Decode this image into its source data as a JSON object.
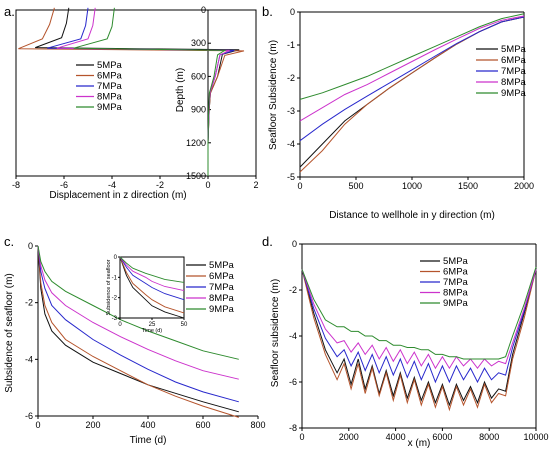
{
  "colors": {
    "5MPa": "#111111",
    "6MPa": "#b5542c",
    "7MPa": "#2828cc",
    "8MPa": "#cc33cc",
    "9MPa": "#2e8b2e"
  },
  "chart_data": [
    {
      "id": "a",
      "panel_label": "a.",
      "type": "line",
      "xlabel": "Displacement in z direction (m)",
      "ylabel": "Depth (m)",
      "xlim": [
        -8,
        2
      ],
      "ylim": [
        0,
        1500
      ],
      "y_inverted": true,
      "xticks": [
        -8,
        -6,
        -4,
        -2,
        0,
        2
      ],
      "yticks": [
        0,
        300,
        600,
        900,
        1200,
        1500
      ],
      "legend": [
        "5MPa",
        "6MPa",
        "7MPa",
        "8MPa",
        "9MPa"
      ],
      "series": [
        {
          "name": "5MPa",
          "points": [
            [
              -5.8,
              -20
            ],
            [
              -5.9,
              120
            ],
            [
              -6.1,
              250
            ],
            [
              -7.2,
              340
            ],
            [
              1.3,
              360
            ],
            [
              0.6,
              400
            ],
            [
              0.4,
              600
            ],
            [
              0.1,
              750
            ],
            [
              0.05,
              900
            ],
            [
              0,
              1200
            ],
            [
              0,
              1500
            ]
          ]
        },
        {
          "name": "6MPa",
          "points": [
            [
              -6.4,
              -20
            ],
            [
              -6.6,
              130
            ],
            [
              -6.9,
              260
            ],
            [
              -7.9,
              350
            ],
            [
              1.5,
              370
            ],
            [
              0.7,
              410
            ],
            [
              0.4,
              600
            ],
            [
              0.1,
              750
            ],
            [
              0.05,
              900
            ],
            [
              0,
              1200
            ],
            [
              0,
              1500
            ]
          ]
        },
        {
          "name": "7MPa",
          "points": [
            [
              -5.0,
              -20
            ],
            [
              -5.1,
              140
            ],
            [
              -5.3,
              260
            ],
            [
              -6.7,
              345
            ],
            [
              1.1,
              365
            ],
            [
              0.5,
              405
            ],
            [
              0.3,
              600
            ],
            [
              0.08,
              750
            ],
            [
              0.04,
              900
            ],
            [
              0,
              1200
            ],
            [
              0,
              1500
            ]
          ]
        },
        {
          "name": "8MPa",
          "points": [
            [
              -4.7,
              -20
            ],
            [
              -4.8,
              140
            ],
            [
              -5.0,
              260
            ],
            [
              -6.3,
              345
            ],
            [
              0.9,
              365
            ],
            [
              0.5,
              405
            ],
            [
              0.3,
              600
            ],
            [
              0.08,
              750
            ],
            [
              0.04,
              900
            ],
            [
              0,
              1200
            ],
            [
              0,
              1500
            ]
          ]
        },
        {
          "name": "9MPa",
          "points": [
            [
              -3.9,
              -20
            ],
            [
              -4.0,
              150
            ],
            [
              -4.2,
              260
            ],
            [
              -5.6,
              345
            ],
            [
              0.7,
              365
            ],
            [
              0.4,
              405
            ],
            [
              0.25,
              600
            ],
            [
              0.06,
              750
            ],
            [
              0.03,
              900
            ],
            [
              0,
              1200
            ],
            [
              0,
              1500
            ]
          ]
        }
      ]
    },
    {
      "id": "b",
      "panel_label": "b.",
      "type": "line",
      "xlabel": "Distance to wellhole in y direction (m)",
      "ylabel": "Seafloor Subsidence (m)",
      "xlim": [
        0,
        2000
      ],
      "ylim": [
        -5,
        0
      ],
      "xticks": [
        0,
        500,
        1000,
        1500,
        2000
      ],
      "yticks": [
        0,
        -1,
        -2,
        -3,
        -4,
        -5
      ],
      "legend": [
        "5MPa",
        "6MPa",
        "7MPa",
        "8MPa",
        "9MPa"
      ],
      "series": [
        {
          "name": "5MPa",
          "x": [
            0,
            200,
            400,
            600,
            800,
            1000,
            1200,
            1400,
            1600,
            1800,
            2000
          ],
          "y": [
            -4.7,
            -4.0,
            -3.3,
            -2.8,
            -2.3,
            -1.85,
            -1.4,
            -0.97,
            -0.6,
            -0.3,
            -0.15
          ]
        },
        {
          "name": "6MPa",
          "x": [
            0,
            200,
            400,
            600,
            800,
            1000,
            1200,
            1400,
            1600,
            1800,
            2000
          ],
          "y": [
            -4.85,
            -4.2,
            -3.4,
            -2.8,
            -2.3,
            -1.85,
            -1.4,
            -0.97,
            -0.6,
            -0.3,
            -0.15
          ]
        },
        {
          "name": "7MPa",
          "x": [
            0,
            200,
            400,
            600,
            800,
            1000,
            1200,
            1400,
            1600,
            1800,
            2000
          ],
          "y": [
            -3.9,
            -3.4,
            -2.95,
            -2.55,
            -2.15,
            -1.75,
            -1.35,
            -0.95,
            -0.6,
            -0.3,
            -0.15
          ]
        },
        {
          "name": "8MPa",
          "x": [
            0,
            200,
            400,
            600,
            800,
            1000,
            1200,
            1400,
            1600,
            1800,
            2000
          ],
          "y": [
            -3.3,
            -2.9,
            -2.5,
            -2.2,
            -1.85,
            -1.5,
            -1.15,
            -0.82,
            -0.5,
            -0.25,
            -0.12
          ]
        },
        {
          "name": "9MPa",
          "x": [
            0,
            200,
            400,
            600,
            800,
            1000,
            1200,
            1400,
            1600,
            1800,
            2000
          ],
          "y": [
            -2.65,
            -2.45,
            -2.2,
            -1.95,
            -1.65,
            -1.35,
            -1.05,
            -0.75,
            -0.45,
            -0.2,
            -0.05
          ]
        }
      ]
    },
    {
      "id": "c",
      "panel_label": "c.",
      "type": "line",
      "xlabel": "Time (d)",
      "ylabel": "Subsidence of seafloor (m)",
      "xlim": [
        0,
        800
      ],
      "ylim": [
        -6,
        0
      ],
      "xticks": [
        0,
        200,
        400,
        600,
        800
      ],
      "yticks": [
        0,
        -2,
        -4,
        -6
      ],
      "legend": [
        "5MPa",
        "6MPa",
        "7MPa",
        "8MPa",
        "9MPa"
      ],
      "series": [
        {
          "name": "5MPa",
          "x": [
            0,
            10,
            25,
            50,
            100,
            200,
            300,
            400,
            500,
            600,
            730
          ],
          "y": [
            0,
            -1.5,
            -2.4,
            -3.0,
            -3.5,
            -4.1,
            -4.5,
            -4.9,
            -5.2,
            -5.5,
            -5.85
          ]
        },
        {
          "name": "6MPa",
          "x": [
            0,
            10,
            25,
            50,
            100,
            200,
            300,
            400,
            500,
            600,
            730
          ],
          "y": [
            0,
            -1.3,
            -2.1,
            -2.7,
            -3.3,
            -3.9,
            -4.4,
            -4.9,
            -5.3,
            -5.65,
            -6.05
          ]
        },
        {
          "name": "7MPa",
          "x": [
            0,
            10,
            25,
            50,
            100,
            200,
            300,
            400,
            500,
            600,
            730
          ],
          "y": [
            0,
            -0.9,
            -1.5,
            -2.1,
            -2.6,
            -3.3,
            -3.85,
            -4.35,
            -4.8,
            -5.15,
            -5.5
          ]
        },
        {
          "name": "8MPa",
          "x": [
            0,
            10,
            25,
            50,
            100,
            200,
            300,
            400,
            500,
            600,
            730
          ],
          "y": [
            0,
            -0.7,
            -1.2,
            -1.65,
            -2.1,
            -2.7,
            -3.2,
            -3.65,
            -4.05,
            -4.4,
            -4.7
          ]
        },
        {
          "name": "9MPa",
          "x": [
            0,
            10,
            25,
            50,
            100,
            200,
            300,
            400,
            500,
            600,
            730
          ],
          "y": [
            0,
            -0.55,
            -0.9,
            -1.25,
            -1.6,
            -2.1,
            -2.6,
            -3.0,
            -3.35,
            -3.7,
            -4.0
          ]
        }
      ],
      "inset": {
        "xlabel": "Time (d)",
        "ylabel": "Subsidence of seafloor",
        "xlim": [
          0,
          50
        ],
        "ylim": [
          -3,
          0
        ],
        "xticks": [
          0,
          25,
          50
        ],
        "yticks": [
          0,
          -1,
          -2,
          -3
        ],
        "series": [
          {
            "name": "5MPa",
            "x": [
              0,
              5,
              10,
              20,
              25,
              35,
              50
            ],
            "y": [
              0,
              -0.9,
              -1.5,
              -2.1,
              -2.4,
              -2.7,
              -3.0
            ]
          },
          {
            "name": "6MPa",
            "x": [
              0,
              5,
              10,
              20,
              25,
              35,
              50
            ],
            "y": [
              0,
              -0.75,
              -1.3,
              -1.85,
              -2.1,
              -2.45,
              -2.75
            ]
          },
          {
            "name": "7MPa",
            "x": [
              0,
              5,
              10,
              20,
              25,
              35,
              50
            ],
            "y": [
              0,
              -0.5,
              -0.9,
              -1.3,
              -1.5,
              -1.8,
              -2.1
            ]
          },
          {
            "name": "8MPa",
            "x": [
              0,
              5,
              10,
              20,
              25,
              35,
              50
            ],
            "y": [
              0,
              -0.4,
              -0.7,
              -1.0,
              -1.2,
              -1.45,
              -1.65
            ]
          },
          {
            "name": "9MPa",
            "x": [
              0,
              5,
              10,
              20,
              25,
              35,
              50
            ],
            "y": [
              0,
              -0.3,
              -0.55,
              -0.8,
              -0.9,
              -1.1,
              -1.25
            ]
          }
        ]
      }
    },
    {
      "id": "d",
      "panel_label": "d.",
      "type": "line",
      "xlabel": "x (m)",
      "ylabel": "Seafloor subsidence (m)",
      "xlim": [
        0,
        10000
      ],
      "ylim": [
        -8,
        0
      ],
      "xticks": [
        0,
        2000,
        4000,
        6000,
        8000,
        10000
      ],
      "yticks": [
        0,
        -2,
        -4,
        -6,
        -8
      ],
      "legend": [
        "5MPa",
        "6MPa",
        "7MPa",
        "8MPa",
        "9MPa"
      ],
      "series": [
        {
          "name": "5MPa",
          "x": [
            0,
            500,
            1000,
            1500,
            1800,
            2100,
            2400,
            2700,
            3000,
            3300,
            3600,
            3900,
            4200,
            4500,
            4800,
            5100,
            5400,
            5700,
            6000,
            6300,
            6600,
            6900,
            7200,
            7500,
            7800,
            8100,
            8400,
            8700,
            9000,
            9500,
            10000
          ],
          "y": [
            -1.1,
            -3.0,
            -4.6,
            -5.6,
            -5.0,
            -6.1,
            -5.0,
            -6.3,
            -5.3,
            -6.5,
            -5.5,
            -6.6,
            -5.6,
            -6.7,
            -5.8,
            -6.8,
            -6.0,
            -6.9,
            -6.1,
            -7.0,
            -6.1,
            -6.8,
            -6.2,
            -6.9,
            -6.0,
            -6.7,
            -6.3,
            -6.4,
            -4.8,
            -3.0,
            -1.1
          ]
        },
        {
          "name": "6MPa",
          "x": [
            0,
            500,
            1000,
            1500,
            1800,
            2100,
            2400,
            2700,
            3000,
            3300,
            3600,
            3900,
            4200,
            4500,
            4800,
            5100,
            5400,
            5700,
            6000,
            6300,
            6600,
            6900,
            7200,
            7500,
            7800,
            8100,
            8400,
            8700,
            9000,
            9500,
            10000
          ],
          "y": [
            -1.1,
            -3.2,
            -4.8,
            -5.9,
            -5.2,
            -6.3,
            -5.2,
            -6.5,
            -5.4,
            -6.6,
            -5.6,
            -6.8,
            -5.7,
            -6.9,
            -5.9,
            -7.0,
            -6.1,
            -7.1,
            -6.2,
            -7.2,
            -6.2,
            -7.0,
            -6.3,
            -7.1,
            -6.1,
            -6.9,
            -6.5,
            -6.6,
            -5.0,
            -3.2,
            -1.1
          ]
        },
        {
          "name": "7MPa",
          "x": [
            0,
            500,
            1000,
            1500,
            1800,
            2100,
            2400,
            2700,
            3000,
            3300,
            3600,
            3900,
            4200,
            4500,
            4800,
            5100,
            5400,
            5700,
            6000,
            6300,
            6600,
            6900,
            7200,
            7500,
            7800,
            8100,
            8400,
            8700,
            9000,
            9500,
            10000
          ],
          "y": [
            -1.1,
            -2.8,
            -4.1,
            -4.9,
            -4.6,
            -5.3,
            -4.7,
            -5.5,
            -4.8,
            -5.6,
            -4.9,
            -5.7,
            -5.0,
            -5.8,
            -5.1,
            -5.9,
            -5.2,
            -6.0,
            -5.3,
            -6.0,
            -5.3,
            -5.9,
            -5.4,
            -6.0,
            -5.4,
            -5.9,
            -5.6,
            -5.7,
            -4.5,
            -2.9,
            -1.1
          ]
        },
        {
          "name": "8MPa",
          "x": [
            0,
            500,
            1000,
            1500,
            1800,
            2100,
            2400,
            2700,
            3000,
            3300,
            3600,
            3900,
            4200,
            4500,
            4800,
            5100,
            5400,
            5700,
            6000,
            6300,
            6600,
            6900,
            7200,
            7500,
            7800,
            8100,
            8400,
            8700,
            9000,
            9500,
            10000
          ],
          "y": [
            -1.1,
            -2.6,
            -3.7,
            -4.3,
            -4.2,
            -4.7,
            -4.3,
            -4.8,
            -4.4,
            -5.0,
            -4.5,
            -5.1,
            -4.6,
            -5.2,
            -4.7,
            -5.3,
            -4.8,
            -5.4,
            -4.9,
            -5.4,
            -4.9,
            -5.3,
            -5.0,
            -5.4,
            -5.0,
            -5.3,
            -5.1,
            -5.2,
            -4.3,
            -2.8,
            -1.1
          ]
        },
        {
          "name": "9MPa",
          "x": [
            0,
            500,
            1000,
            1500,
            1800,
            2100,
            2400,
            2700,
            3000,
            3300,
            3600,
            3900,
            4200,
            4500,
            4800,
            5100,
            5400,
            5700,
            6000,
            6300,
            6600,
            6900,
            7200,
            7500,
            7800,
            8100,
            8400,
            8700,
            9000,
            9500,
            10000
          ],
          "y": [
            -1.1,
            -2.4,
            -3.3,
            -3.6,
            -3.6,
            -3.8,
            -3.8,
            -4.0,
            -4.0,
            -4.2,
            -4.2,
            -4.4,
            -4.4,
            -4.5,
            -4.5,
            -4.6,
            -4.6,
            -4.8,
            -4.8,
            -4.9,
            -4.9,
            -5.0,
            -5.0,
            -5.0,
            -5.0,
            -5.0,
            -5.0,
            -4.9,
            -4.0,
            -2.6,
            -1.0
          ]
        }
      ]
    }
  ]
}
